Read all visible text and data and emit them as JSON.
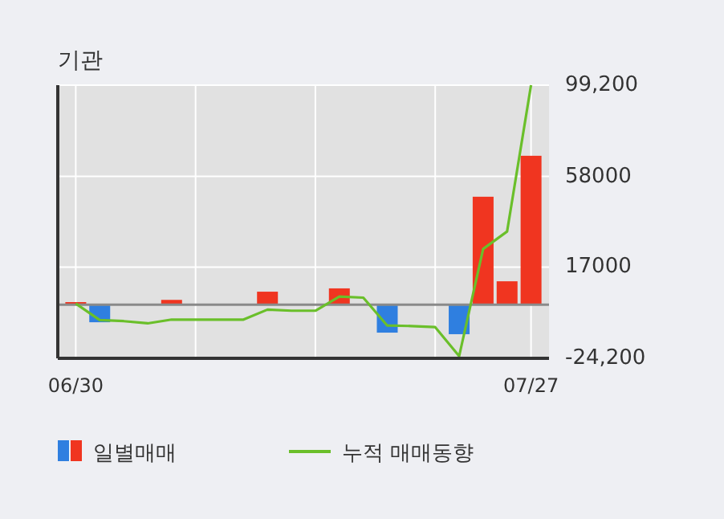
{
  "chart_data": {
    "type": "bar",
    "title": "기관",
    "categories": [
      "06/30",
      null,
      null,
      null,
      null,
      null,
      null,
      null,
      null,
      null,
      null,
      null,
      null,
      null,
      null,
      null,
      null,
      null,
      null,
      "07/27"
    ],
    "series": [
      {
        "name": "일별매매",
        "colors": [
          "#f03520",
          "#2f7fe0",
          "#f03520",
          "#f03520",
          "#f03520",
          "#f03520",
          "#f03520",
          "#f03520",
          "#f03520",
          "#f03520",
          "#f03520",
          "#f03520",
          "#f03520",
          "#2f7fe0",
          "#f03520",
          "#f03520",
          "#2f7fe0",
          "#f03520",
          "#f03520",
          "#f03520"
        ],
        "values": [
          1200,
          -7900,
          0,
          0,
          2200,
          0,
          0,
          0,
          5900,
          0,
          0,
          7400,
          0,
          -12600,
          0,
          0,
          -13300,
          48800,
          10600,
          67300
        ]
      },
      {
        "name": "누적 매매동향",
        "type": "line",
        "color": "#6abf2a",
        "values": [
          500,
          -6900,
          -7400,
          -8400,
          -6700,
          -6700,
          -6700,
          -6700,
          -2200,
          -2700,
          -2700,
          3700,
          3200,
          -9400,
          -9600,
          -10100,
          -23200,
          25200,
          33100,
          99200
        ]
      }
    ],
    "ylim": [
      -24200,
      99200
    ],
    "yticks": [
      {
        "value": 99200,
        "label": "99,200"
      },
      58000,
      17000,
      {
        "value": -24200,
        "label": "-24,200"
      }
    ],
    "grid": true,
    "legend": "bottom"
  }
}
